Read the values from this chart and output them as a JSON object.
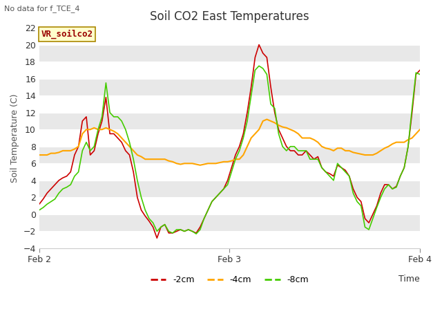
{
  "title": "Soil CO2 East Temperatures",
  "top_left_text": "No data for f_TCE_4",
  "annotation_box_text": "VR_soilco2",
  "xlabel": "Time",
  "ylabel": "Soil Temperature (C)",
  "ylim": [
    -4,
    22
  ],
  "yticks": [
    -4,
    -2,
    0,
    2,
    4,
    6,
    8,
    10,
    12,
    14,
    16,
    18,
    20,
    22
  ],
  "xtick_positions": [
    0,
    1,
    2
  ],
  "xtick_labels": [
    "Feb 2",
    "Feb 3",
    "Feb 4"
  ],
  "bg_color": "#e8e8e8",
  "line_colors": {
    "2cm": "#cc0000",
    "4cm": "#ffa500",
    "8cm": "#44cc00"
  },
  "legend_labels": [
    "-2cm",
    "-4cm",
    "-8cm"
  ],
  "series_2cm": [
    1.2,
    1.8,
    2.5,
    3.0,
    3.5,
    4.0,
    4.3,
    4.5,
    5.0,
    7.0,
    8.0,
    11.0,
    11.5,
    7.0,
    7.5,
    9.5,
    11.0,
    13.8,
    9.5,
    9.5,
    9.0,
    8.5,
    7.5,
    7.0,
    5.0,
    2.0,
    0.5,
    -0.2,
    -0.8,
    -1.5,
    -2.8,
    -1.5,
    -1.2,
    -2.2,
    -2.2,
    -2.0,
    -1.8,
    -2.0,
    -1.8,
    -2.0,
    -2.2,
    -1.5,
    -0.5,
    0.5,
    1.5,
    2.0,
    2.5,
    3.0,
    4.0,
    5.5,
    7.0,
    8.0,
    9.5,
    12.0,
    15.0,
    18.5,
    20.0,
    19.0,
    18.5,
    15.0,
    12.0,
    10.0,
    9.0,
    8.0,
    7.5,
    7.5,
    7.0,
    7.0,
    7.5,
    7.0,
    6.5,
    6.8,
    5.5,
    5.0,
    4.8,
    4.5,
    5.8,
    5.5,
    5.2,
    4.5,
    3.0,
    2.0,
    1.5,
    -0.5,
    -1.0,
    0.0,
    1.0,
    2.5,
    3.5,
    3.5,
    3.0,
    3.3,
    4.5,
    5.5,
    8.0,
    12.0,
    16.5,
    17.0
  ],
  "series_4cm": [
    7.0,
    7.0,
    7.0,
    7.2,
    7.2,
    7.3,
    7.5,
    7.5,
    7.5,
    7.7,
    8.0,
    9.5,
    10.0,
    10.0,
    10.2,
    10.0,
    10.0,
    10.2,
    10.0,
    9.8,
    9.5,
    9.0,
    8.5,
    8.0,
    7.5,
    7.0,
    6.8,
    6.5,
    6.5,
    6.5,
    6.5,
    6.5,
    6.5,
    6.3,
    6.2,
    6.0,
    5.9,
    6.0,
    6.0,
    6.0,
    5.9,
    5.8,
    5.9,
    6.0,
    6.0,
    6.0,
    6.1,
    6.2,
    6.2,
    6.3,
    6.5,
    6.5,
    7.0,
    8.0,
    9.0,
    9.5,
    10.0,
    11.0,
    11.2,
    11.0,
    10.8,
    10.5,
    10.3,
    10.2,
    10.0,
    9.8,
    9.5,
    9.0,
    9.0,
    9.0,
    8.8,
    8.5,
    8.0,
    7.8,
    7.7,
    7.5,
    7.8,
    7.8,
    7.5,
    7.5,
    7.3,
    7.2,
    7.1,
    7.0,
    7.0,
    7.0,
    7.2,
    7.5,
    7.8,
    8.0,
    8.3,
    8.5,
    8.5,
    8.5,
    8.8,
    9.0,
    9.5,
    10.0
  ],
  "series_8cm": [
    0.5,
    0.8,
    1.2,
    1.5,
    1.8,
    2.5,
    3.0,
    3.2,
    3.5,
    4.5,
    5.0,
    7.5,
    8.5,
    7.5,
    8.0,
    10.0,
    11.5,
    15.5,
    12.0,
    11.5,
    11.5,
    11.0,
    10.0,
    8.5,
    6.5,
    4.0,
    2.0,
    0.5,
    -0.5,
    -1.0,
    -2.0,
    -1.5,
    -1.2,
    -2.0,
    -2.2,
    -1.8,
    -1.8,
    -2.0,
    -1.8,
    -2.0,
    -2.3,
    -1.8,
    -0.5,
    0.5,
    1.5,
    2.0,
    2.5,
    3.0,
    3.5,
    5.0,
    6.5,
    7.5,
    9.0,
    11.0,
    14.0,
    17.0,
    17.5,
    17.2,
    16.5,
    13.0,
    12.5,
    9.5,
    8.0,
    7.5,
    8.0,
    8.0,
    7.5,
    7.5,
    7.5,
    6.5,
    6.5,
    6.5,
    5.5,
    5.0,
    4.5,
    4.0,
    6.0,
    5.5,
    5.0,
    4.5,
    2.5,
    1.5,
    1.0,
    -1.5,
    -1.8,
    -0.5,
    0.8,
    2.0,
    3.0,
    3.5,
    3.0,
    3.2,
    4.5,
    5.5,
    8.0,
    12.5,
    16.7,
    16.5
  ]
}
